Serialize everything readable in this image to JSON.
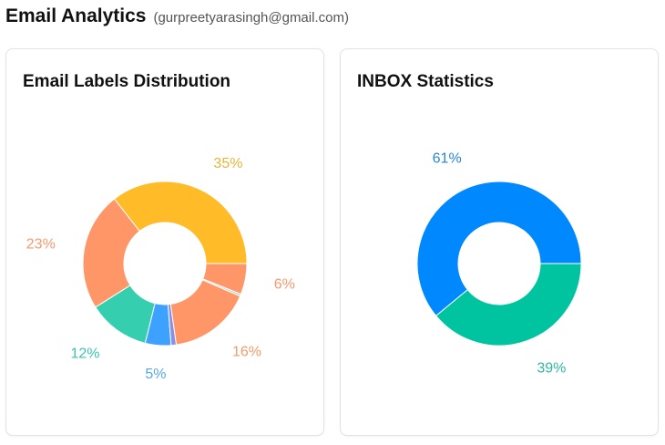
{
  "header": {
    "title": "Email Analytics",
    "email": "(gurpreetyarasingh@gmail.com)"
  },
  "chart_data": [
    {
      "type": "pie",
      "title": "Email Labels Distribution",
      "donut": true,
      "slices": [
        {
          "value": 35,
          "label": "35%",
          "color": "#FFBB28",
          "label_color": "#E8B43A"
        },
        {
          "value": 23,
          "label": "23%",
          "color": "#FF9667",
          "label_color": "#F59A6E"
        },
        {
          "value": 12,
          "label": "12%",
          "color": "#35CFB0",
          "label_color": "#3CC4AE"
        },
        {
          "value": 5,
          "label": "5%",
          "color": "#3DA2FF",
          "label_color": "#56A8E6"
        },
        {
          "value": 1,
          "label": "",
          "color": "#8E8EE6",
          "label_color": "#8E8EE6"
        },
        {
          "value": 16,
          "label": "16%",
          "color": "#FF9667",
          "label_color": "#F59A6E"
        },
        {
          "value": 0.4,
          "label": "",
          "color": "#9ED8C8",
          "label_color": "#9ED8C8"
        },
        {
          "value": 6,
          "label": "6%",
          "color": "#FF9667",
          "label_color": "#F59A6E"
        }
      ]
    },
    {
      "type": "pie",
      "title": "INBOX Statistics",
      "donut": true,
      "slices": [
        {
          "value": 61,
          "label": "61%",
          "color": "#0088FE",
          "label_color": "#2A86D6"
        },
        {
          "value": 39,
          "label": "39%",
          "color": "#00C49F",
          "label_color": "#2FB89E"
        }
      ]
    }
  ]
}
